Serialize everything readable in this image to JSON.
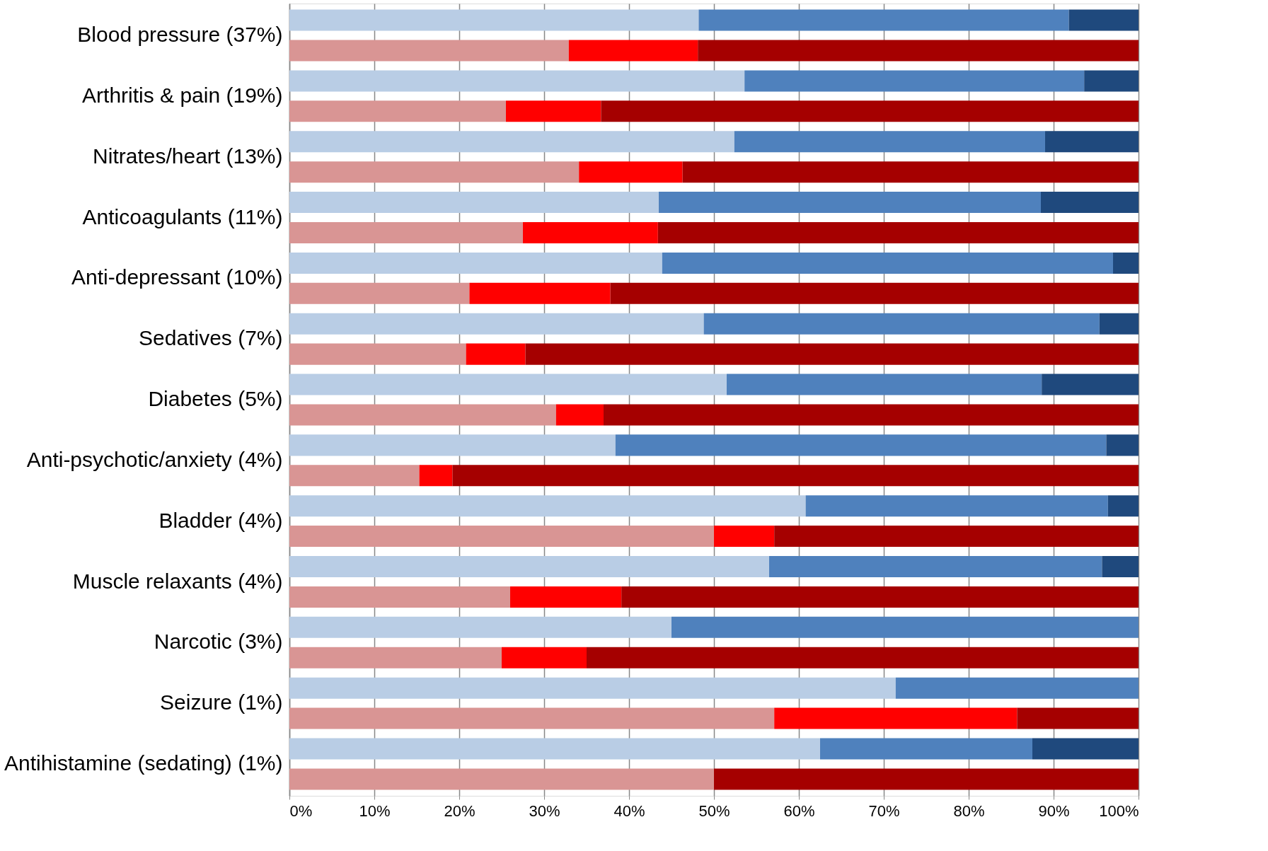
{
  "chart_data": {
    "type": "bar",
    "orientation": "horizontal",
    "stacked": true,
    "categories": [
      "Blood pressure (37%)",
      null,
      "Arthritis & pain (19%)",
      null,
      "Nitrates/heart (13%)",
      null,
      "Anticoagulants (11%)",
      null,
      "Anti-depressant (10%)",
      null,
      "Sedatives (7%)",
      null,
      "Diabetes (5%)",
      null,
      "Anti-psychotic/anxiety (4%)",
      null,
      "Bladder (4%)",
      null,
      "Muscle relaxants (4%)",
      null,
      "Narcotic (3%)",
      null,
      "Seizure (1%)",
      null,
      "Antihistamine (sedating) (1%)",
      null
    ],
    "series": [
      {
        "color": "#b9cde5",
        "values": [
          48.2,
          null,
          53.6,
          null,
          52.4,
          null,
          43.5,
          null,
          43.9,
          null,
          48.8,
          null,
          51.5,
          null,
          38.4,
          null,
          60.8,
          null,
          56.5,
          null,
          45.0,
          null,
          71.4,
          null,
          62.5,
          null
        ]
      },
      {
        "color": "#4f81bd",
        "values": [
          43.6,
          null,
          40.0,
          null,
          36.6,
          null,
          45.0,
          null,
          53.1,
          null,
          46.6,
          null,
          37.1,
          null,
          57.8,
          null,
          35.6,
          null,
          39.2,
          null,
          55.0,
          null,
          28.6,
          null,
          25.0,
          null
        ]
      },
      {
        "color": "#1f497d",
        "values": [
          8.2,
          null,
          6.4,
          null,
          11.0,
          null,
          11.5,
          null,
          3.0,
          null,
          4.6,
          null,
          11.4,
          null,
          3.8,
          null,
          3.6,
          null,
          4.3,
          null,
          null,
          null,
          null,
          null,
          12.5,
          null
        ]
      },
      {
        "color": "#d99594",
        "values": [
          null,
          32.9,
          null,
          25.5,
          null,
          34.1,
          null,
          27.5,
          null,
          21.2,
          null,
          20.8,
          null,
          31.4,
          null,
          15.3,
          null,
          50.0,
          null,
          26.0,
          null,
          25.0,
          null,
          57.1,
          null,
          50.0
        ]
      },
      {
        "color": "#ff0000",
        "values": [
          null,
          15.2,
          null,
          11.2,
          null,
          12.2,
          null,
          15.9,
          null,
          16.6,
          null,
          7.0,
          null,
          5.6,
          null,
          3.9,
          null,
          7.1,
          null,
          13.1,
          null,
          10.0,
          null,
          28.6,
          null,
          null
        ]
      },
      {
        "color": "#a50000",
        "values": [
          null,
          51.9,
          null,
          63.3,
          null,
          53.7,
          null,
          56.6,
          null,
          62.2,
          null,
          72.2,
          null,
          63.0,
          null,
          80.8,
          null,
          42.9,
          null,
          60.9,
          null,
          65.0,
          null,
          14.3,
          null,
          50.0
        ]
      }
    ],
    "xlim": [
      0,
      100
    ],
    "xticks": [
      {
        "value": 0,
        "label": "0%"
      },
      {
        "value": 10,
        "label": "10%"
      },
      {
        "value": 20,
        "label": "20%"
      },
      {
        "value": 30,
        "label": "30%"
      },
      {
        "value": 40,
        "label": "40%"
      },
      {
        "value": 50,
        "label": "50%"
      },
      {
        "value": 60,
        "label": "60%"
      },
      {
        "value": 70,
        "label": "70%"
      },
      {
        "value": 80,
        "label": "80%"
      },
      {
        "value": 90,
        "label": "90%"
      },
      {
        "value": 100,
        "label": "100%"
      }
    ],
    "grid": "x",
    "legend": false
  }
}
